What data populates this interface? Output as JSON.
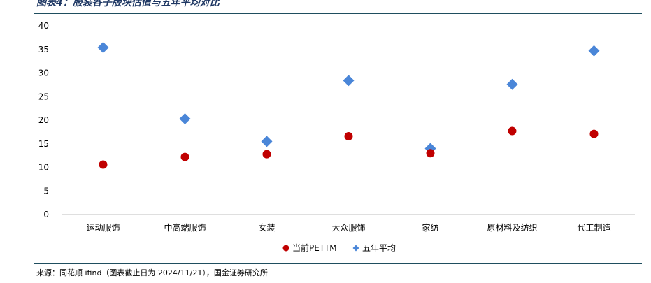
{
  "title": "图表4：服装各子版块估值与五年平均对比",
  "source": "来源：同花顺 ifind（图表截止日为 2024/11/21），国金证券研究所",
  "colors": {
    "series1": "#c00000",
    "series2": "#4a86d8",
    "rule": "#1f4e5f",
    "axis": "#bfbfbf"
  },
  "chart_data": {
    "type": "scatter",
    "title": "图表4：服装各子版块估值与五年平均对比",
    "xlabel": "",
    "ylabel": "",
    "ylim": [
      0,
      40
    ],
    "yticks": [
      "0",
      "5",
      "10",
      "15",
      "20",
      "25",
      "30",
      "35",
      "40"
    ],
    "grid": false,
    "legend": "bottom",
    "categories": [
      "运动服饰",
      "中高端服饰",
      "女装",
      "大众服饰",
      "家纺",
      "原材料及纺织",
      "代工制造"
    ],
    "series": [
      {
        "name": "当前PETTM",
        "marker": "circle",
        "values": [
          10.6,
          12.2,
          12.8,
          16.6,
          13.0,
          17.7,
          17.1
        ]
      },
      {
        "name": "五年平均",
        "marker": "diamond",
        "values": [
          35.4,
          20.3,
          15.5,
          28.4,
          14.0,
          27.6,
          34.7
        ]
      }
    ]
  }
}
